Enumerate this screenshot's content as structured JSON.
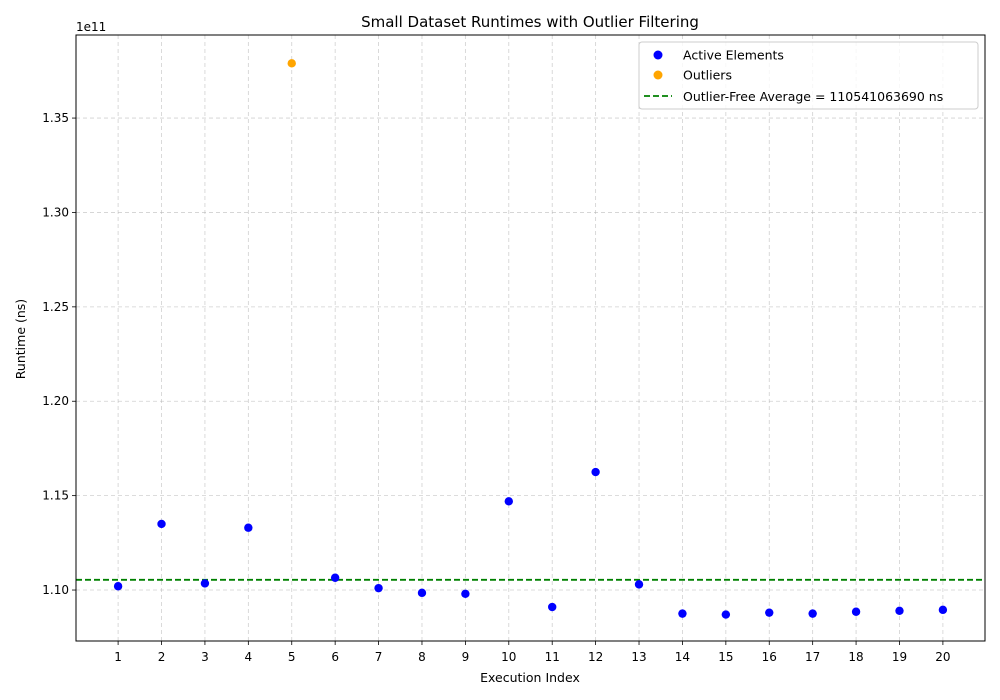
{
  "chart_data": {
    "type": "scatter",
    "title": "Small Dataset Runtimes with Outlier Filtering",
    "xlabel": "Execution Index",
    "ylabel": "Runtime (ns)",
    "offset_text": "1e11",
    "x_ticks": [
      1,
      2,
      3,
      4,
      5,
      6,
      7,
      8,
      9,
      10,
      11,
      12,
      13,
      14,
      15,
      16,
      17,
      18,
      19,
      20
    ],
    "y_ticks": [
      "1.10",
      "1.15",
      "1.20",
      "1.25",
      "1.30",
      "1.35"
    ],
    "y_tick_values": [
      110000000000,
      115000000000,
      120000000000,
      125000000000,
      130000000000,
      135000000000
    ],
    "xlim": [
      0.03,
      20.97
    ],
    "ylim": [
      107300000000,
      139400000000
    ],
    "grid": true,
    "legend_position": "top-right",
    "series": [
      {
        "name": "Active Elements",
        "color": "#0000ff",
        "x": [
          1,
          2,
          3,
          4,
          6,
          7,
          8,
          9,
          10,
          11,
          12,
          13,
          14,
          15,
          16,
          17,
          18,
          19,
          20
        ],
        "y": [
          110200000000,
          113500000000,
          110350000000,
          113300000000,
          110650000000,
          110100000000,
          109850000000,
          109800000000,
          114700000000,
          109100000000,
          116250000000,
          110300000000,
          108750000000,
          108700000000,
          108800000000,
          108750000000,
          108850000000,
          108900000000,
          108950000000
        ]
      },
      {
        "name": "Outliers",
        "color": "#ffa500",
        "x": [
          5
        ],
        "y": [
          137900000000
        ]
      }
    ],
    "reference_line": {
      "label": "Outlier-Free Average = 110541063690 ns",
      "value": 110541063690,
      "color": "#008000",
      "style": "dashed"
    }
  }
}
